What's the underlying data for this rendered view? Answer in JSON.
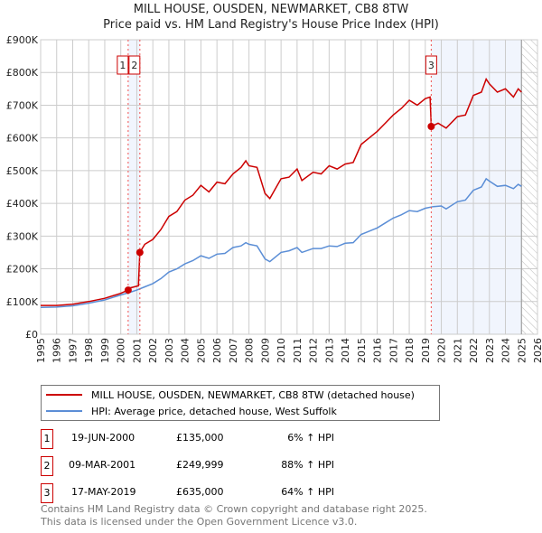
{
  "title": "MILL HOUSE, OUSDEN, NEWMARKET, CB8 8TW",
  "subtitle": "Price paid vs. HM Land Registry's House Price Index (HPI)",
  "chart_data": {
    "type": "line",
    "title": "MILL HOUSE, OUSDEN, NEWMARKET, CB8 8TW",
    "xlim": [
      1995,
      2026
    ],
    "ylim": [
      0,
      900000
    ],
    "grid": true,
    "x_ticks": [
      "1995",
      "1996",
      "1997",
      "1998",
      "1999",
      "2000",
      "2001",
      "2002",
      "2003",
      "2004",
      "2005",
      "2006",
      "2007",
      "2008",
      "2009",
      "2010",
      "2011",
      "2012",
      "2013",
      "2014",
      "2015",
      "2016",
      "2017",
      "2018",
      "2019",
      "2020",
      "2021",
      "2022",
      "2023",
      "2024",
      "2025",
      "2026"
    ],
    "y_ticks": [
      {
        "v": 0,
        "label": "£0"
      },
      {
        "v": 100000,
        "label": "£100K"
      },
      {
        "v": 200000,
        "label": "£200K"
      },
      {
        "v": 300000,
        "label": "£300K"
      },
      {
        "v": 400000,
        "label": "£400K"
      },
      {
        "v": 500000,
        "label": "£500K"
      },
      {
        "v": 600000,
        "label": "£600K"
      },
      {
        "v": 700000,
        "label": "£700K"
      },
      {
        "v": 800000,
        "label": "£800K"
      },
      {
        "v": 900000,
        "label": "£900K"
      }
    ],
    "shaded_ranges": [
      [
        2000.46,
        2001.19
      ],
      [
        2019.37,
        2025.0
      ]
    ],
    "hatched_range": [
      2025.0,
      2026
    ],
    "series": [
      {
        "name": "MILL HOUSE, OUSDEN, NEWMARKET, CB8 8TW (detached house)",
        "color": "#cc0000",
        "x": [
          1995,
          1996,
          1997,
          1998,
          1999,
          2000,
          2000.46,
          2000.6,
          2001.1,
          2001.19,
          2001.5,
          2002,
          2002.5,
          2003,
          2003.5,
          2004,
          2004.5,
          2005,
          2005.5,
          2006,
          2006.5,
          2007,
          2007.5,
          2007.8,
          2008,
          2008.5,
          2009,
          2009.3,
          2010,
          2010.5,
          2011,
          2011.3,
          2012,
          2012.5,
          2013,
          2013.5,
          2014,
          2014.5,
          2015,
          2015.5,
          2016,
          2016.5,
          2017,
          2017.5,
          2018,
          2018.5,
          2019,
          2019.3,
          2019.37,
          2019.8,
          2020.3,
          2021,
          2021.5,
          2022,
          2022.5,
          2022.8,
          2023,
          2023.5,
          2024,
          2024.5,
          2024.8,
          2025
        ],
        "y": [
          88000,
          88000,
          92000,
          100000,
          110000,
          125000,
          135000,
          142000,
          148000,
          250000,
          275000,
          290000,
          320000,
          360000,
          375000,
          410000,
          425000,
          455000,
          435000,
          465000,
          460000,
          490000,
          510000,
          530000,
          515000,
          510000,
          430000,
          415000,
          475000,
          480000,
          505000,
          470000,
          495000,
          490000,
          515000,
          505000,
          520000,
          525000,
          580000,
          600000,
          620000,
          645000,
          670000,
          690000,
          715000,
          700000,
          720000,
          725000,
          635000,
          645000,
          630000,
          665000,
          670000,
          730000,
          740000,
          780000,
          765000,
          740000,
          750000,
          725000,
          750000,
          740000
        ]
      },
      {
        "name": "HPI: Average price, detached house, West Suffolk",
        "color": "#5b8ed6",
        "x": [
          1995,
          1996,
          1997,
          1998,
          1999,
          2000,
          2000.5,
          2001,
          2001.5,
          2002,
          2002.5,
          2003,
          2003.5,
          2004,
          2004.5,
          2005,
          2005.5,
          2006,
          2006.5,
          2007,
          2007.5,
          2007.8,
          2008,
          2008.5,
          2009,
          2009.3,
          2010,
          2010.5,
          2011,
          2011.3,
          2012,
          2012.5,
          2013,
          2013.5,
          2014,
          2014.5,
          2015,
          2015.5,
          2016,
          2016.5,
          2017,
          2017.5,
          2018,
          2018.5,
          2019,
          2019.5,
          2020,
          2020.3,
          2021,
          2021.5,
          2022,
          2022.5,
          2022.8,
          2023,
          2023.5,
          2024,
          2024.5,
          2024.8,
          2025
        ],
        "y": [
          82000,
          83000,
          87000,
          95000,
          105000,
          120000,
          127000,
          135000,
          145000,
          155000,
          170000,
          190000,
          200000,
          215000,
          225000,
          240000,
          232000,
          245000,
          247000,
          265000,
          270000,
          280000,
          275000,
          270000,
          230000,
          222000,
          250000,
          255000,
          265000,
          250000,
          262000,
          262000,
          270000,
          268000,
          278000,
          280000,
          305000,
          315000,
          325000,
          340000,
          355000,
          365000,
          378000,
          375000,
          385000,
          390000,
          392000,
          383000,
          405000,
          410000,
          440000,
          450000,
          475000,
          468000,
          452000,
          455000,
          445000,
          458000,
          452000
        ]
      }
    ],
    "annotations": [
      {
        "label": "1",
        "x": 2000.46,
        "y": 135000
      },
      {
        "label": "2",
        "x": 2001.19,
        "y": 249999
      },
      {
        "label": "3",
        "x": 2019.37,
        "y": 635000
      }
    ]
  },
  "legend": [
    {
      "label": "MILL HOUSE, OUSDEN, NEWMARKET, CB8 8TW (detached house)",
      "color": "#cc0000"
    },
    {
      "label": "HPI: Average price, detached house, West Suffolk",
      "color": "#5b8ed6"
    }
  ],
  "transactions": [
    {
      "num": "1",
      "date": "19-JUN-2000",
      "price": "£135,000",
      "hpi": "6% ↑ HPI"
    },
    {
      "num": "2",
      "date": "09-MAR-2001",
      "price": "£249,999",
      "hpi": "88% ↑ HPI"
    },
    {
      "num": "3",
      "date": "17-MAY-2019",
      "price": "£635,000",
      "hpi": "64% ↑ HPI"
    }
  ],
  "footer": {
    "line1": "Contains HM Land Registry data © Crown copyright and database right 2025.",
    "line2": "This data is licensed under the Open Government Licence v3.0."
  }
}
